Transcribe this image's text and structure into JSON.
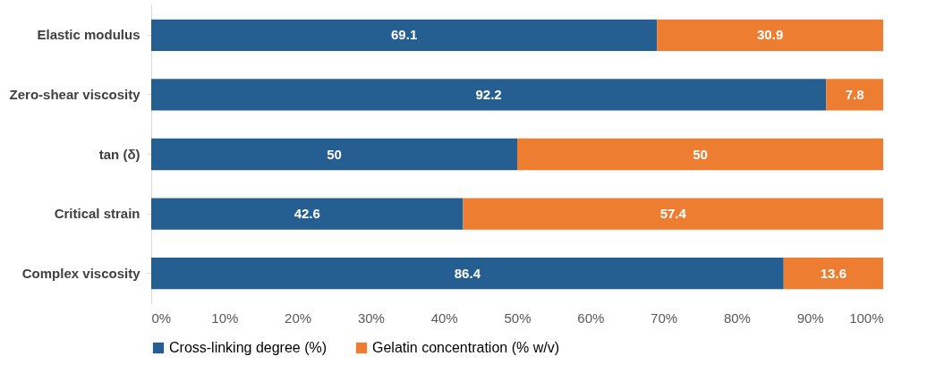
{
  "chart_data": {
    "type": "bar",
    "orientation": "horizontal",
    "stacked": true,
    "data_labels": true,
    "grid": false,
    "legend": "bottom",
    "categories": [
      "Elastic modulus",
      "Zero-shear viscosity",
      "tan (δ)",
      "Critical strain",
      "Complex viscosity"
    ],
    "series": [
      {
        "name": "Cross-linking degree (%)",
        "color": "#255e91",
        "values": [
          69.1,
          92.2,
          50,
          42.6,
          86.4
        ]
      },
      {
        "name": "Gelatin concentration (% w/v)",
        "color": "#ed7d31",
        "values": [
          30.9,
          7.8,
          50,
          57.4,
          13.6
        ]
      }
    ],
    "xlim": [
      0,
      100
    ],
    "xticks": [
      {
        "value": 0,
        "label": "0%"
      },
      {
        "value": 10,
        "label": "10%"
      },
      {
        "value": 20,
        "label": "20%"
      },
      {
        "value": 30,
        "label": "30%"
      },
      {
        "value": 40,
        "label": "40%"
      },
      {
        "value": 50,
        "label": "50%"
      },
      {
        "value": 60,
        "label": "60%"
      },
      {
        "value": 70,
        "label": "70%"
      },
      {
        "value": 80,
        "label": "80%"
      },
      {
        "value": 90,
        "label": "90%"
      },
      {
        "value": 100,
        "label": "100%"
      }
    ]
  }
}
